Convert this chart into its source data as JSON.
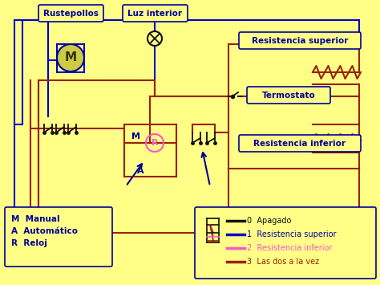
{
  "bg_color": "#FFFF88",
  "labels": {
    "rustepollos": "Rustepollos",
    "luz_interior": "Luz interior",
    "resistencia_superior": "Resistencia superior",
    "termostato": "Termostato",
    "resistencia_inferior": "Resistencia inferior",
    "legend_title_m": "M  Manual",
    "legend_title_a": "A  Automático",
    "legend_title_r": "R  Reloj",
    "legend_0": "0  Apagado",
    "legend_1": "1  Resistencia superior",
    "legend_2": "2  Resistencia inferior",
    "legend_3": "3  Las dos a la vez"
  },
  "colors": {
    "blue": "#0000CC",
    "dark_blue": "#000099",
    "black": "#111111",
    "pink": "#FF55CC",
    "red": "#992200",
    "motor_fill": "#CCCC44",
    "box_edge": "#000099"
  }
}
